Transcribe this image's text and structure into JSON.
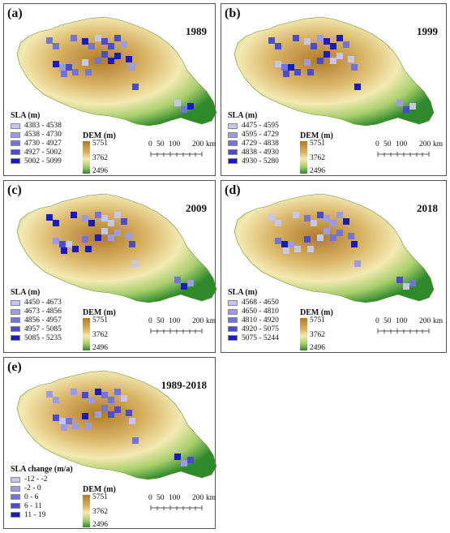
{
  "panels": [
    {
      "label": "(a)",
      "period": "1989",
      "legend": {
        "title": "SLA (m)",
        "classes": [
          {
            "range": "4383 - 4538",
            "color": "#c6c6ef"
          },
          {
            "range": "4538 - 4730",
            "color": "#9c9ce6"
          },
          {
            "range": "4730 - 4927",
            "color": "#7373dc"
          },
          {
            "range": "4927 - 5002",
            "color": "#4a4ad2"
          },
          {
            "range": "5002 - 5099",
            "color": "#1a1ac4"
          }
        ]
      }
    },
    {
      "label": "(b)",
      "period": "1999",
      "legend": {
        "title": "SLA (m)",
        "classes": [
          {
            "range": "4475 - 4595",
            "color": "#c6c6ef"
          },
          {
            "range": "4595 - 4729",
            "color": "#9c9ce6"
          },
          {
            "range": "4729 - 4838",
            "color": "#7373dc"
          },
          {
            "range": "4838 - 4930",
            "color": "#4a4ad2"
          },
          {
            "range": "4930 - 5280",
            "color": "#1a1ac4"
          }
        ]
      }
    },
    {
      "label": "(c)",
      "period": "2009",
      "legend": {
        "title": "SLA (m)",
        "classes": [
          {
            "range": "4450 - 4673",
            "color": "#c6c6ef"
          },
          {
            "range": "4673 - 4856",
            "color": "#9c9ce6"
          },
          {
            "range": "4856 - 4957",
            "color": "#7373dc"
          },
          {
            "range": "4957 - 5085",
            "color": "#4a4ad2"
          },
          {
            "range": "5085 - 5235",
            "color": "#1a1ac4"
          }
        ]
      }
    },
    {
      "label": "(d)",
      "period": "2018",
      "legend": {
        "title": "SLA (m)",
        "classes": [
          {
            "range": "4568 - 4650",
            "color": "#c6c6ef"
          },
          {
            "range": "4650 - 4810",
            "color": "#9c9ce6"
          },
          {
            "range": "4810 - 4920",
            "color": "#7373dc"
          },
          {
            "range": "4920 - 5075",
            "color": "#4a4ad2"
          },
          {
            "range": "5075 - 5244",
            "color": "#1a1ac4"
          }
        ]
      }
    },
    {
      "label": "(e)",
      "period": "1989-2018",
      "legend": {
        "title": "SLA change (m/a)",
        "classes": [
          {
            "range": "-12 - -2",
            "color": "#c6c6ef"
          },
          {
            "range": "-2 - 0",
            "color": "#9c9ce6"
          },
          {
            "range": "0 - 6",
            "color": "#7373dc"
          },
          {
            "range": "6 - 11",
            "color": "#4a4ad2"
          },
          {
            "range": "11 - 19",
            "color": "#1a1ac4"
          }
        ]
      }
    }
  ],
  "dem_legend": {
    "title": "DEM (m)",
    "high": "5751",
    "mid": "3762",
    "low": "2496"
  },
  "scale_bar": {
    "ticks": [
      "0",
      "50",
      "100",
      "200"
    ],
    "unit": "km"
  },
  "colors": {
    "terrain_high": "#b07a2a",
    "terrain_mid": "#f4eab2",
    "terrain_low": "#2f8a2c"
  }
}
